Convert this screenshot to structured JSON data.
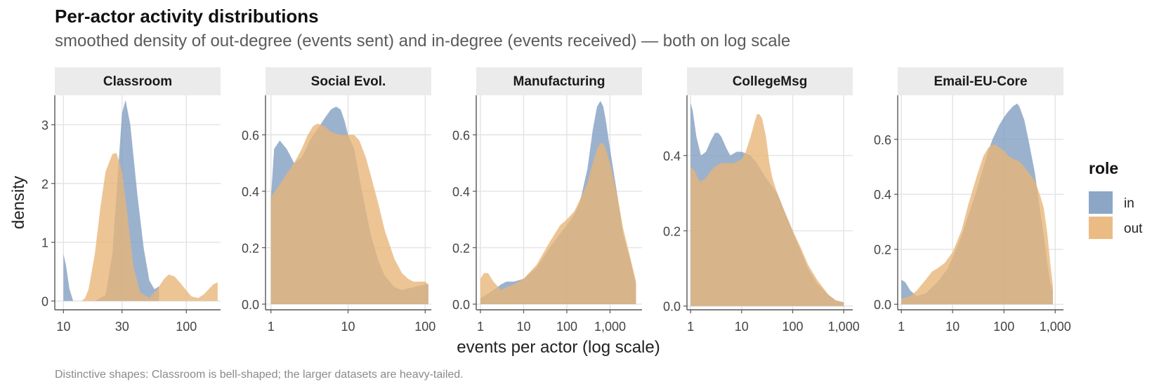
{
  "title": "Per-actor activity distributions",
  "subtitle": "smoothed density of out-degree (events sent) and in-degree (events received) — both on log scale",
  "caption": "Distinctive shapes: Classroom is bell-shaped; the larger datasets are heavy-tailed.",
  "colors": {
    "in": "#7f9cc0",
    "out": "#e8b577",
    "strip_bg": "#ebebeb",
    "grid": "#e3e3e3",
    "axis": "#555555"
  },
  "chart_data": {
    "type": "area",
    "xlabel": "events per actor (log scale)",
    "ylabel": "density",
    "x_scale": "log10",
    "grid": true,
    "legend": {
      "title": "role",
      "entries": [
        "in",
        "out"
      ],
      "placement": "right"
    },
    "panels": [
      {
        "name": "Classroom",
        "xlim": [
          8.5,
          190
        ],
        "ylim": [
          -0.15,
          3.5
        ],
        "xticks": [
          10,
          30,
          100
        ],
        "xtick_labels": [
          "10",
          "30",
          "100"
        ],
        "yticks": [
          0,
          1,
          2,
          3
        ],
        "ytick_labels": [
          "0",
          "1",
          "2",
          "3"
        ],
        "series": [
          {
            "name": "in",
            "x": [
              10,
              10.5,
              11.2,
              12,
              14,
              18,
              22,
              25,
              28,
              30,
              32,
              35,
              40,
              45,
              50,
              55,
              60
            ],
            "y": [
              0.8,
              0.6,
              0.2,
              0.0,
              0.0,
              0.0,
              0.1,
              0.8,
              2.3,
              3.2,
              3.42,
              3.0,
              1.8,
              0.9,
              0.35,
              0.2,
              0.25
            ]
          },
          {
            "name": "out",
            "x": [
              14,
              15,
              16,
              18,
              20,
              22,
              25,
              27,
              30,
              33,
              37,
              42,
              50,
              58,
              66,
              72,
              80,
              90,
              100,
              110,
              125,
              140,
              165,
              180
            ],
            "y": [
              0.0,
              0.05,
              0.2,
              0.8,
              1.6,
              2.2,
              2.5,
              2.52,
              2.2,
              1.5,
              0.6,
              0.15,
              0.05,
              0.2,
              0.38,
              0.45,
              0.42,
              0.3,
              0.18,
              0.08,
              0.05,
              0.12,
              0.28,
              0.32
            ]
          }
        ]
      },
      {
        "name": "Social Evol.",
        "xlim": [
          0.85,
          120
        ],
        "ylim": [
          -0.02,
          0.74
        ],
        "xticks": [
          1,
          10,
          100
        ],
        "xtick_labels": [
          "1",
          "10",
          "100"
        ],
        "yticks": [
          0,
          0.2,
          0.4,
          0.6
        ],
        "ytick_labels": [
          "0.0",
          "0.2",
          "0.4",
          "0.6"
        ],
        "series": [
          {
            "name": "in",
            "x": [
              1,
              1.1,
              1.3,
              1.6,
              2,
              2.5,
              3.2,
              4,
              5,
              6,
              7,
              8,
              9,
              10,
              12,
              14,
              17,
              20,
              25,
              30,
              40,
              50,
              70,
              100,
              110
            ],
            "y": [
              0.38,
              0.55,
              0.58,
              0.55,
              0.5,
              0.52,
              0.58,
              0.62,
              0.66,
              0.69,
              0.7,
              0.69,
              0.65,
              0.6,
              0.55,
              0.45,
              0.33,
              0.24,
              0.15,
              0.1,
              0.06,
              0.05,
              0.06,
              0.07,
              0.07
            ]
          },
          {
            "name": "out",
            "x": [
              1,
              1.2,
              1.5,
              2,
              2.5,
              3,
              3.5,
              4,
              5,
              6,
              8,
              10,
              12,
              14,
              17,
              20,
              25,
              30,
              40,
              50,
              60,
              70,
              80,
              100,
              110
            ],
            "y": [
              0.38,
              0.41,
              0.45,
              0.5,
              0.55,
              0.6,
              0.63,
              0.64,
              0.63,
              0.61,
              0.6,
              0.6,
              0.6,
              0.58,
              0.52,
              0.45,
              0.35,
              0.26,
              0.16,
              0.11,
              0.09,
              0.08,
              0.08,
              0.08,
              0.07
            ]
          }
        ]
      },
      {
        "name": "Manufacturing",
        "xlim": [
          0.8,
          5500
        ],
        "ylim": [
          -0.02,
          0.74
        ],
        "xticks": [
          1,
          10,
          100,
          1000
        ],
        "xtick_labels": [
          "1",
          "10",
          "100",
          "1,000"
        ],
        "yticks": [
          0,
          0.2,
          0.4,
          0.6
        ],
        "ytick_labels": [
          "0.0",
          "0.2",
          "0.4",
          "0.6"
        ],
        "series": [
          {
            "name": "in",
            "x": [
              1,
              2,
              3,
              4,
              6,
              10,
              20,
              40,
              70,
              100,
              150,
              200,
              300,
              400,
              500,
              600,
              700,
              800,
              1000,
              1500,
              2000,
              3000,
              4000
            ],
            "y": [
              0.02,
              0.05,
              0.07,
              0.08,
              0.08,
              0.09,
              0.13,
              0.2,
              0.25,
              0.28,
              0.32,
              0.36,
              0.48,
              0.62,
              0.7,
              0.72,
              0.7,
              0.65,
              0.55,
              0.38,
              0.25,
              0.15,
              0.07
            ]
          },
          {
            "name": "out",
            "x": [
              1,
              1.2,
              1.5,
              2,
              3,
              4,
              6,
              10,
              20,
              40,
              70,
              100,
              150,
              200,
              300,
              400,
              500,
              600,
              700,
              800,
              1000,
              1500,
              2000,
              3000,
              4000
            ],
            "y": [
              0.09,
              0.11,
              0.11,
              0.08,
              0.05,
              0.06,
              0.07,
              0.09,
              0.14,
              0.22,
              0.28,
              0.3,
              0.33,
              0.37,
              0.43,
              0.5,
              0.55,
              0.57,
              0.57,
              0.55,
              0.5,
              0.38,
              0.27,
              0.16,
              0.08
            ]
          }
        ]
      },
      {
        "name": "CollegeMsg",
        "xlim": [
          0.85,
          1500
        ],
        "ylim": [
          -0.01,
          0.56
        ],
        "xticks": [
          1,
          10,
          100,
          1000
        ],
        "xtick_labels": [
          "1",
          "10",
          "100",
          "1,000"
        ],
        "yticks": [
          0,
          0.2,
          0.4
        ],
        "ytick_labels": [
          "0.0",
          "0.2",
          "0.4"
        ],
        "series": [
          {
            "name": "in",
            "x": [
              1,
              1.1,
              1.3,
              1.6,
              2,
              2.5,
              3,
              3.5,
              4,
              5,
              6,
              8,
              10,
              15,
              20,
              30,
              50,
              70,
              100,
              150,
              200,
              300,
              500,
              700,
              1000
            ],
            "y": [
              0.54,
              0.52,
              0.45,
              0.4,
              0.41,
              0.44,
              0.46,
              0.46,
              0.45,
              0.42,
              0.4,
              0.41,
              0.41,
              0.4,
              0.38,
              0.34,
              0.3,
              0.25,
              0.2,
              0.14,
              0.1,
              0.06,
              0.03,
              0.015,
              0.01
            ]
          },
          {
            "name": "out",
            "x": [
              1,
              1.2,
              1.5,
              2,
              2.5,
              3,
              4,
              5,
              7,
              10,
              12,
              15,
              18,
              20,
              22,
              25,
              30,
              35,
              40,
              50,
              70,
              100,
              150,
              200,
              300,
              500,
              700,
              1000
            ],
            "y": [
              0.37,
              0.36,
              0.33,
              0.34,
              0.36,
              0.37,
              0.38,
              0.38,
              0.38,
              0.39,
              0.41,
              0.45,
              0.49,
              0.51,
              0.51,
              0.5,
              0.45,
              0.38,
              0.34,
              0.3,
              0.25,
              0.2,
              0.15,
              0.11,
              0.07,
              0.03,
              0.015,
              0.01
            ]
          }
        ]
      },
      {
        "name": "Email-EU-Core",
        "xlim": [
          0.85,
          1450
        ],
        "ylim": [
          -0.02,
          0.76
        ],
        "xticks": [
          1,
          10,
          100,
          1000
        ],
        "xtick_labels": [
          "1",
          "10",
          "100",
          "1,000"
        ],
        "yticks": [
          0,
          0.2,
          0.4,
          0.6
        ],
        "ytick_labels": [
          "0.0",
          "0.2",
          "0.4",
          "0.6"
        ],
        "series": [
          {
            "name": "in",
            "x": [
              1,
              1.2,
              1.5,
              2,
              3,
              5,
              8,
              10,
              15,
              20,
              30,
              40,
              50,
              60,
              80,
              100,
              120,
              150,
              180,
              200,
              250,
              300,
              400,
              500,
              600,
              700,
              800,
              900
            ],
            "y": [
              0.09,
              0.08,
              0.05,
              0.03,
              0.04,
              0.08,
              0.13,
              0.17,
              0.25,
              0.32,
              0.42,
              0.5,
              0.56,
              0.6,
              0.65,
              0.68,
              0.7,
              0.72,
              0.73,
              0.72,
              0.67,
              0.6,
              0.48,
              0.35,
              0.25,
              0.15,
              0.08,
              0.05
            ]
          },
          {
            "name": "out",
            "x": [
              1,
              1.5,
              2,
              3,
              4,
              5,
              7,
              10,
              15,
              20,
              30,
              40,
              50,
              60,
              70,
              80,
              100,
              120,
              150,
              200,
              250,
              300,
              400,
              500,
              600,
              700,
              800,
              900
            ],
            "y": [
              0.02,
              0.03,
              0.05,
              0.09,
              0.12,
              0.13,
              0.15,
              0.19,
              0.27,
              0.36,
              0.47,
              0.54,
              0.57,
              0.58,
              0.58,
              0.57,
              0.56,
              0.54,
              0.53,
              0.52,
              0.5,
              0.48,
              0.45,
              0.4,
              0.35,
              0.26,
              0.15,
              0.07
            ]
          }
        ]
      }
    ]
  }
}
